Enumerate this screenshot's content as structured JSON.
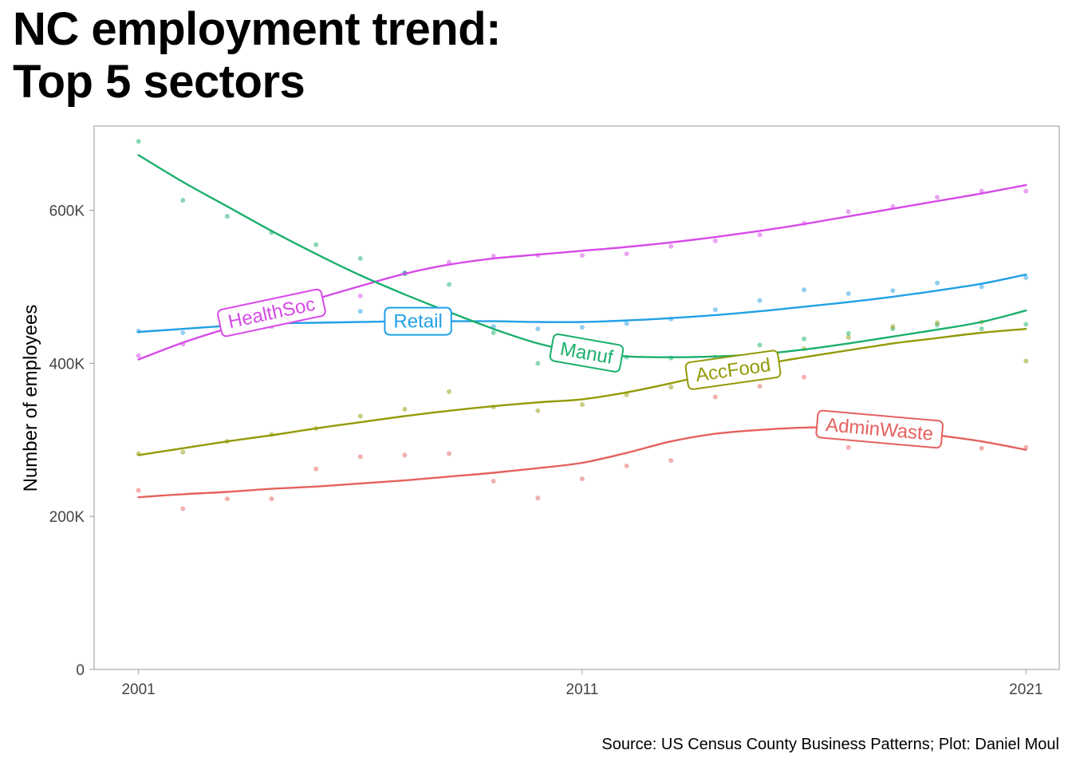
{
  "title_lines": [
    "NC employment trend:",
    "Top 5 sectors"
  ],
  "caption": "Source: US Census County Business Patterns; Plot: Daniel Moul",
  "chart_data": {
    "type": "line",
    "title": "NC employment trend: Top 5 sectors",
    "xlabel": "",
    "ylabel": "Number of employees",
    "xlim": [
      2000,
      2021.75
    ],
    "ylim": [
      0,
      710000
    ],
    "x_ticks": [
      2001,
      2011,
      2021
    ],
    "x_tick_labels": [
      "2001",
      "2011",
      "2021"
    ],
    "y_ticks": [
      0,
      200000,
      400000,
      600000
    ],
    "y_tick_labels": [
      "0",
      "200K",
      "400K",
      "600K"
    ],
    "grid": false,
    "legend": "direct labels on lines",
    "x": [
      2001,
      2002,
      2003,
      2004,
      2005,
      2006,
      2007,
      2008,
      2009,
      2010,
      2011,
      2012,
      2013,
      2014,
      2015,
      2016,
      2017,
      2018,
      2019,
      2020,
      2021
    ],
    "series": [
      {
        "name": "HealthSoc",
        "color": "#d64ae8",
        "label_x": 2004,
        "label_rotation": -12,
        "points": [
          410000,
          425000,
          443000,
          448000,
          465000,
          488000,
          518000,
          532000,
          540000,
          541000,
          541000,
          543000,
          553000,
          560000,
          568000,
          583000,
          598000,
          605000,
          617000,
          625000,
          625000
        ],
        "trend": [
          405000,
          427000,
          446000,
          466000,
          484000,
          501000,
          517000,
          529000,
          537000,
          542000,
          547000,
          552000,
          558000,
          565000,
          573000,
          582000,
          592000,
          602000,
          612000,
          622000,
          633000
        ]
      },
      {
        "name": "Retail",
        "color": "#21a0e6",
        "label_x": 2007.3,
        "label_rotation": 0,
        "points": [
          442000,
          440000,
          445000,
          450000,
          467000,
          468000,
          518000,
          455000,
          448000,
          445000,
          447000,
          452000,
          458000,
          470000,
          482000,
          496000,
          491000,
          495000,
          505000,
          500000,
          512000
        ],
        "trend": [
          441000,
          445000,
          449000,
          452000,
          453000,
          454000,
          455000,
          455000,
          455000,
          454000,
          454000,
          456000,
          459000,
          463000,
          468000,
          474000,
          480000,
          487000,
          495000,
          504000,
          516000
        ]
      },
      {
        "name": "Manuf",
        "color": "#1aaf6c",
        "label_x": 2011.1,
        "label_rotation": 10,
        "points": [
          690000,
          613000,
          592000,
          571000,
          555000,
          537000,
          517000,
          503000,
          440000,
          400000,
          412000,
          408000,
          407000,
          408000,
          424000,
          432000,
          439000,
          445000,
          450000,
          445000,
          451000
        ],
        "trend": [
          672000,
          637000,
          605000,
          573000,
          543000,
          515000,
          490000,
          467000,
          445000,
          426000,
          414000,
          409000,
          408000,
          409000,
          412000,
          418000,
          426000,
          435000,
          444000,
          454000,
          469000
        ]
      },
      {
        "name": "AccFood",
        "color": "#939a07",
        "label_x": 2014.4,
        "label_rotation": -8,
        "points": [
          282000,
          284000,
          298000,
          307000,
          315000,
          331000,
          340000,
          363000,
          343000,
          338000,
          346000,
          359000,
          369000,
          380000,
          393000,
          419000,
          434000,
          448000,
          453000,
          454000,
          403000
        ],
        "trend": [
          280000,
          289000,
          298000,
          306000,
          315000,
          323000,
          331000,
          338000,
          344000,
          349000,
          353000,
          362000,
          374000,
          387000,
          398000,
          408000,
          417000,
          426000,
          433000,
          440000,
          445000
        ]
      },
      {
        "name": "AdminWaste",
        "color": "#e5615e",
        "label_x": 2017.7,
        "label_rotation": 5,
        "points": [
          234000,
          210000,
          223000,
          223000,
          262000,
          278000,
          280000,
          282000,
          246000,
          224000,
          249000,
          266000,
          273000,
          356000,
          370000,
          382000,
          290000,
          300000,
          305000,
          289000,
          290000
        ],
        "trend": [
          225000,
          229000,
          232000,
          236000,
          239000,
          243000,
          247000,
          252000,
          257000,
          263000,
          270000,
          283000,
          298000,
          308000,
          313000,
          316000,
          316000,
          313000,
          306000,
          298000,
          287000
        ]
      }
    ]
  }
}
